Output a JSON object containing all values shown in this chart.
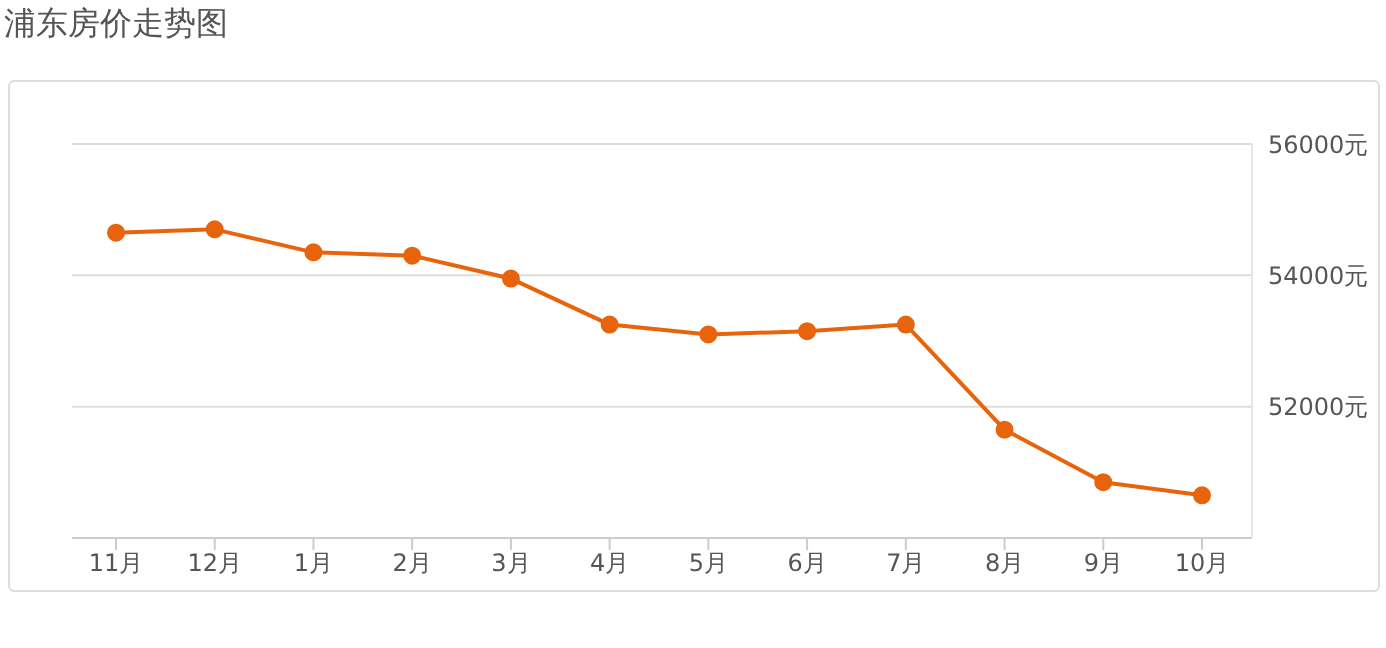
{
  "chart_data": {
    "type": "line",
    "title": "浦东房价走势图",
    "categories": [
      "11月",
      "12月",
      "1月",
      "2月",
      "3月",
      "4月",
      "5月",
      "6月",
      "7月",
      "8月",
      "9月",
      "10月"
    ],
    "series": [
      {
        "color": "#e8640c",
        "values": [
          54650,
          54700,
          54350,
          54300,
          53950,
          53250,
          53100,
          53150,
          53250,
          51650,
          50850,
          50650
        ]
      }
    ],
    "ylim": [
      50000,
      56000
    ],
    "yticks": [
      {
        "value": 50000,
        "label": null
      },
      {
        "value": 52000,
        "label": "52000元"
      },
      {
        "value": 54000,
        "label": "54000元"
      },
      {
        "value": 56000,
        "label": "56000元"
      }
    ],
    "grid": "y",
    "marker": "circle",
    "line_style": "solid",
    "legend": false
  }
}
